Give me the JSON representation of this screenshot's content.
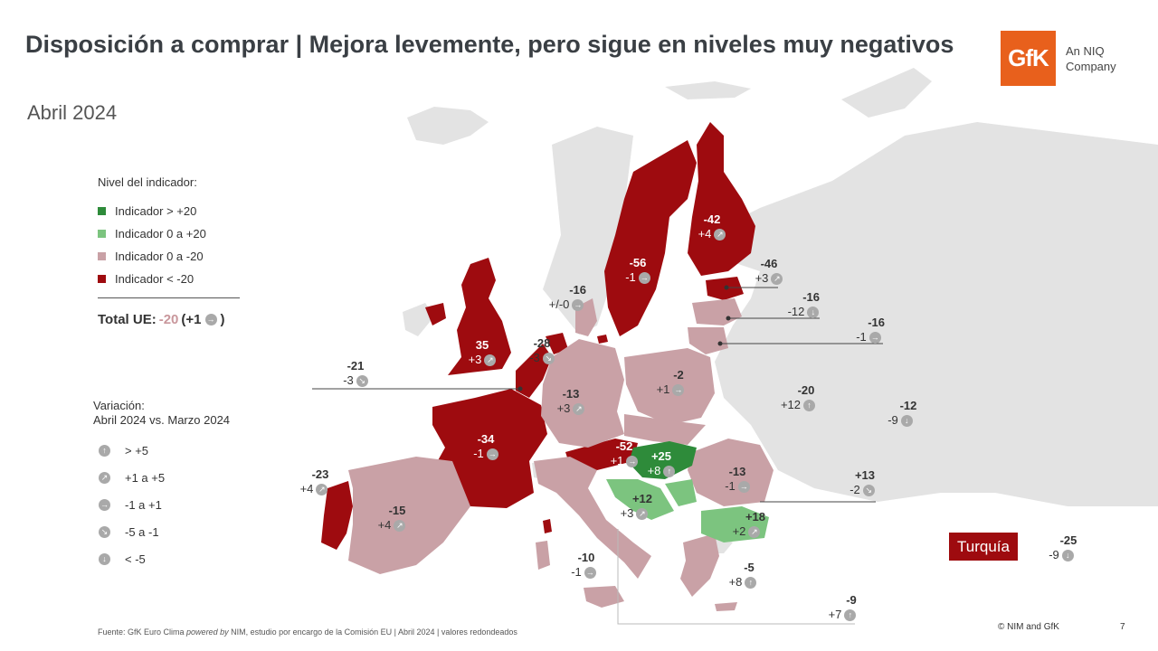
{
  "header": {
    "title": "Disposición a comprar | Mejora levemente, pero sigue en niveles muy negativos",
    "subtitle": "Abril 2024",
    "logo_text": "GfK",
    "logo_tagline_1": "An NIQ",
    "logo_tagline_2": "Company"
  },
  "colors": {
    "dark_green": "#2e8b3a",
    "light_green": "#7cc47f",
    "light_pink": "#c9a1a6",
    "dark_red": "#9e0b0f",
    "background_land": "#e3e3e3",
    "arrow_icon": "#a9a9a9"
  },
  "legend": {
    "title": "Nivel del indicador:",
    "items": [
      {
        "label": "Indicador > +20",
        "color": "#2e8b3a"
      },
      {
        "label": "Indicador 0 a +20",
        "color": "#7cc47f"
      },
      {
        "label": "Indicador 0 a -20",
        "color": "#c9a1a6"
      },
      {
        "label": "Indicador < -20",
        "color": "#9e0b0f"
      }
    ]
  },
  "total": {
    "label": "Total UE:",
    "value": "-20",
    "change_open": "(+1",
    "change_close": ")",
    "icon": "arrow-right-icon"
  },
  "variation_legend": {
    "title_1": "Variación:",
    "title_2": "Abril 2024 vs. Marzo 2024",
    "items": [
      {
        "icon": "arrow-up-icon",
        "glyph": "↑",
        "label": "> +5"
      },
      {
        "icon": "arrow-up-right-icon",
        "glyph": "↗",
        "label": "+1 a +5"
      },
      {
        "icon": "arrow-right-icon",
        "glyph": "→",
        "label": "-1 a +1"
      },
      {
        "icon": "arrow-down-right-icon",
        "glyph": "↘",
        "label": "-5 a -1"
      },
      {
        "icon": "arrow-down-icon",
        "glyph": "↓",
        "label": "< -5"
      }
    ]
  },
  "labels": [
    {
      "value": "-42",
      "change": "+4",
      "glyph": "↗",
      "light": true
    },
    {
      "value": "-56",
      "change": "-1",
      "glyph": "→",
      "light": true
    },
    {
      "value": "-46",
      "change": "+3",
      "glyph": "↗",
      "light": false
    },
    {
      "value": "-16",
      "change": "-12",
      "glyph": "↓",
      "light": false
    },
    {
      "value": "-16",
      "change": "-1",
      "glyph": "→",
      "light": false
    },
    {
      "value": "-16",
      "change": "+/-0",
      "glyph": "→",
      "light": false
    },
    {
      "value": "-28",
      "change": "-3",
      "glyph": "↘",
      "light": false
    },
    {
      "value": "35",
      "change": "+3",
      "glyph": "↗",
      "light": true
    },
    {
      "value": "-21",
      "change": "-3",
      "glyph": "↘",
      "light": false
    },
    {
      "value": "-13",
      "change": "+3",
      "glyph": "↗",
      "light": false
    },
    {
      "value": "-2",
      "change": "+1",
      "glyph": "→",
      "light": false
    },
    {
      "value": "-20",
      "change": "+12",
      "glyph": "↑",
      "light": false
    },
    {
      "value": "-12",
      "change": "-9",
      "glyph": "↓",
      "light": false
    },
    {
      "value": "-34",
      "change": "-1",
      "glyph": "→",
      "light": true
    },
    {
      "value": "-52",
      "change": "+1",
      "glyph": "→",
      "light": true
    },
    {
      "value": "+25",
      "change": "+8",
      "glyph": "↑",
      "light": true
    },
    {
      "value": "-13",
      "change": "-1",
      "glyph": "→",
      "light": false
    },
    {
      "value": "+13",
      "change": "-2",
      "glyph": "↘",
      "light": false
    },
    {
      "value": "-23",
      "change": "+4",
      "glyph": "↗",
      "light": false
    },
    {
      "value": "-15",
      "change": "+4",
      "glyph": "↗",
      "light": false
    },
    {
      "value": "+12",
      "change": "+3",
      "glyph": "↗",
      "light": false
    },
    {
      "value": "+18",
      "change": "+2",
      "glyph": "↗",
      "light": false
    },
    {
      "value": "-10",
      "change": "-1",
      "glyph": "→",
      "light": false
    },
    {
      "value": "-5",
      "change": "+8",
      "glyph": "↑",
      "light": false
    },
    {
      "value": "-9",
      "change": "+7",
      "glyph": "↑",
      "light": false
    },
    {
      "value": "-25",
      "change": "-9",
      "glyph": "↓",
      "light": false
    }
  ],
  "turquia": {
    "label": "Turquía"
  },
  "footer": {
    "source_prefix": "Fuente: GfK Euro Clima ",
    "source_italic": "powered by",
    "source_suffix": " NIM,  estudio por encargo de la Comisión  EU | Abril 2024 | valores redondeados",
    "copyright": "© NIM and GfK",
    "page": "7"
  }
}
